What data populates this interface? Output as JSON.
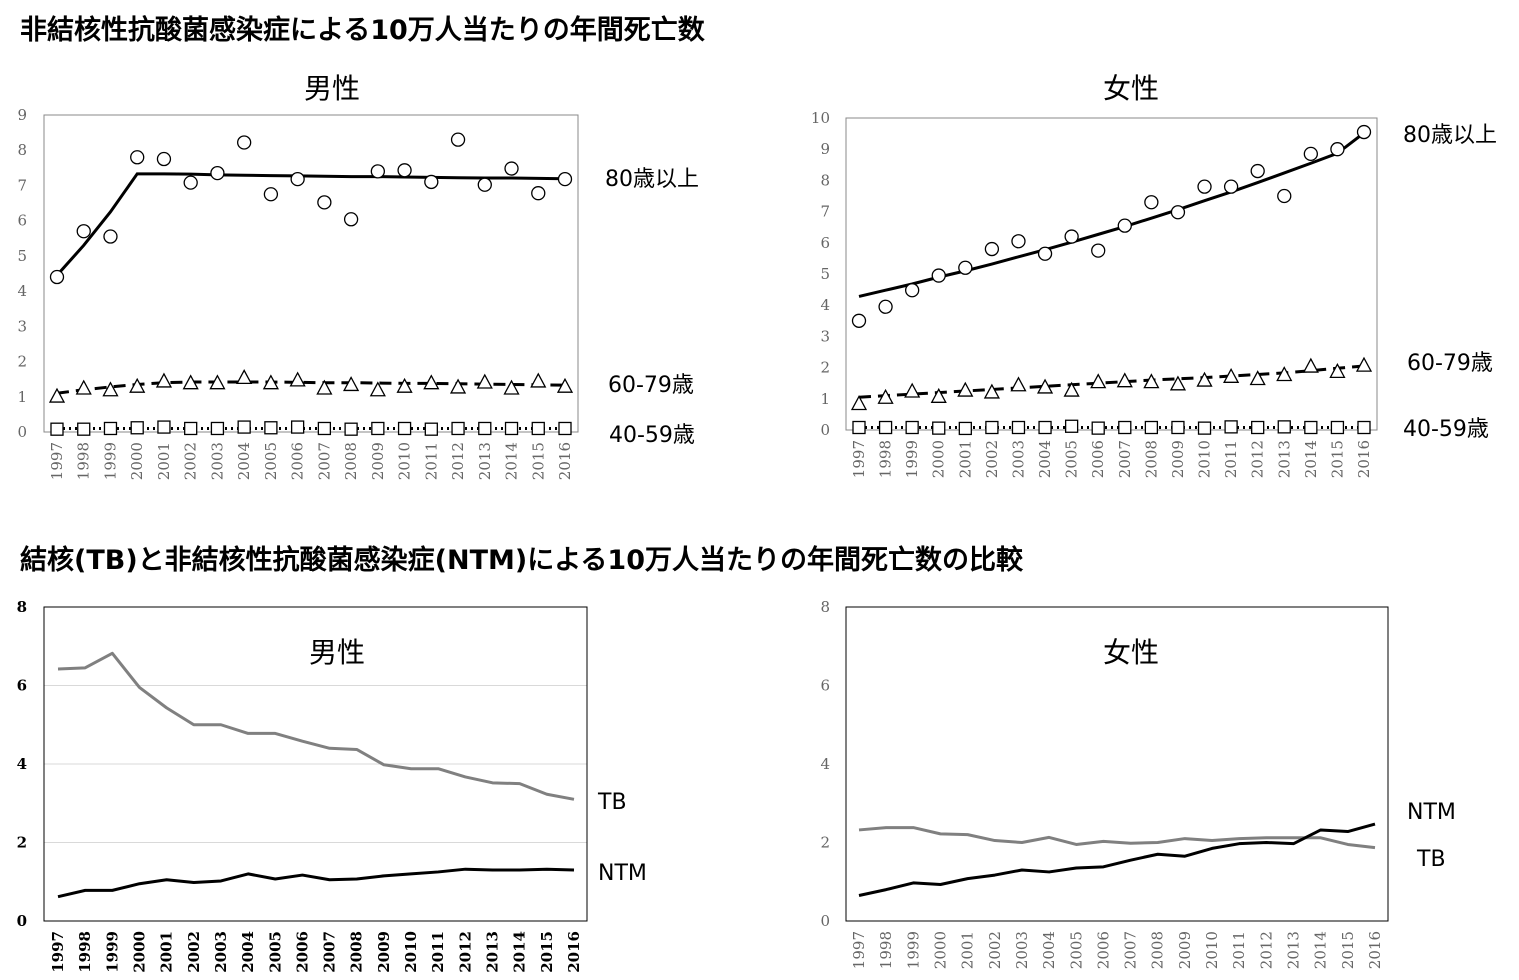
{
  "headings": {
    "top": "非結核性抗酸菌感染症による10万人当たりの年間死亡数",
    "bottom": "結核(TB)と非結核性抗酸菌感染症(NTM)による10万人当たりの年間死亡数の比較"
  },
  "colors": {
    "tb": "#808080",
    "ntm": "#000000",
    "gridline": "#d9d9d9"
  },
  "chart_data": [
    {
      "id": "top-male",
      "type": "scatter",
      "title": "男性",
      "categories": [
        "1997",
        "1998",
        "1999",
        "2000",
        "2001",
        "2002",
        "2003",
        "2004",
        "2005",
        "2006",
        "2007",
        "2008",
        "2009",
        "2010",
        "2011",
        "2012",
        "2013",
        "2014",
        "2015",
        "2016"
      ],
      "ylim": [
        0,
        9
      ],
      "yticks": [
        0,
        1,
        2,
        3,
        4,
        5,
        6,
        7,
        8,
        9
      ],
      "series": [
        {
          "name": "80歳以上",
          "marker": "circle",
          "values": [
            4.4,
            5.7,
            5.55,
            7.8,
            7.75,
            7.08,
            7.35,
            8.22,
            6.75,
            7.18,
            6.52,
            6.04,
            7.4,
            7.43,
            7.1,
            8.3,
            7.02,
            7.48,
            6.78,
            7.18
          ],
          "trend": [
            4.45,
            5.3,
            6.25,
            7.33,
            7.33,
            7.32,
            7.3,
            7.29,
            7.28,
            7.27,
            7.26,
            7.25,
            7.25,
            7.24,
            7.23,
            7.22,
            7.21,
            7.21,
            7.2,
            7.19
          ]
        },
        {
          "name": "60-79歳",
          "marker": "triangle",
          "values": [
            1.02,
            1.25,
            1.2,
            1.3,
            1.45,
            1.4,
            1.4,
            1.55,
            1.4,
            1.48,
            1.25,
            1.35,
            1.2,
            1.3,
            1.4,
            1.28,
            1.42,
            1.25,
            1.45,
            1.3
          ],
          "trend": [
            1.1,
            1.2,
            1.28,
            1.35,
            1.4,
            1.42,
            1.42,
            1.42,
            1.42,
            1.41,
            1.4,
            1.4,
            1.39,
            1.38,
            1.38,
            1.37,
            1.36,
            1.35,
            1.34,
            1.33
          ]
        },
        {
          "name": "40-59歳",
          "marker": "square",
          "values": [
            0.08,
            0.08,
            0.1,
            0.12,
            0.14,
            0.1,
            0.1,
            0.14,
            0.12,
            0.14,
            0.1,
            0.08,
            0.1,
            0.1,
            0.08,
            0.1,
            0.1,
            0.1,
            0.1,
            0.1
          ],
          "trend": [
            0.1,
            0.1,
            0.1,
            0.1,
            0.1,
            0.1,
            0.1,
            0.1,
            0.1,
            0.1,
            0.1,
            0.1,
            0.1,
            0.1,
            0.1,
            0.1,
            0.1,
            0.1,
            0.1,
            0.1
          ]
        }
      ]
    },
    {
      "id": "top-female",
      "type": "scatter",
      "title": "女性",
      "categories": [
        "1997",
        "1998",
        "1999",
        "2000",
        "2001",
        "2002",
        "2003",
        "2004",
        "2005",
        "2006",
        "2007",
        "2008",
        "2009",
        "2010",
        "2011",
        "2012",
        "2013",
        "2014",
        "2015",
        "2016"
      ],
      "ylim": [
        0,
        10
      ],
      "yticks": [
        0,
        1,
        2,
        3,
        4,
        5,
        6,
        7,
        8,
        9,
        10
      ],
      "series": [
        {
          "name": "80歳以上",
          "marker": "circle",
          "values": [
            3.5,
            3.95,
            4.48,
            4.95,
            5.2,
            5.8,
            6.05,
            5.65,
            6.2,
            5.75,
            6.55,
            7.3,
            6.98,
            7.8,
            7.8,
            8.3,
            7.5,
            8.85,
            9.0,
            9.55
          ],
          "trend": [
            4.28,
            4.48,
            4.68,
            4.9,
            5.1,
            5.32,
            5.55,
            5.78,
            6.02,
            6.27,
            6.52,
            6.79,
            7.06,
            7.35,
            7.63,
            7.93,
            8.24,
            8.55,
            8.87,
            9.52
          ]
        },
        {
          "name": "60-79歳",
          "marker": "triangle",
          "values": [
            0.85,
            1.05,
            1.25,
            1.08,
            1.28,
            1.22,
            1.45,
            1.38,
            1.28,
            1.55,
            1.58,
            1.55,
            1.48,
            1.6,
            1.72,
            1.65,
            1.78,
            2.05,
            1.88,
            2.08
          ],
          "trend": [
            1.05,
            1.1,
            1.15,
            1.2,
            1.25,
            1.3,
            1.35,
            1.4,
            1.45,
            1.5,
            1.55,
            1.6,
            1.64,
            1.68,
            1.73,
            1.78,
            1.83,
            1.9,
            1.98,
            2.05
          ]
        },
        {
          "name": "40-59歳",
          "marker": "square",
          "values": [
            0.08,
            0.08,
            0.08,
            0.06,
            0.05,
            0.08,
            0.08,
            0.08,
            0.12,
            0.06,
            0.08,
            0.08,
            0.08,
            0.06,
            0.1,
            0.08,
            0.1,
            0.08,
            0.08,
            0.08
          ],
          "trend": [
            0.08,
            0.08,
            0.08,
            0.08,
            0.08,
            0.08,
            0.08,
            0.08,
            0.08,
            0.08,
            0.08,
            0.08,
            0.08,
            0.08,
            0.08,
            0.08,
            0.08,
            0.08,
            0.08,
            0.08
          ]
        }
      ]
    },
    {
      "id": "bottom-male",
      "type": "line",
      "title": "男性",
      "categories": [
        "1997",
        "1998",
        "1999",
        "2000",
        "2001",
        "2002",
        "2003",
        "2004",
        "2005",
        "2006",
        "2007",
        "2008",
        "2009",
        "2010",
        "2011",
        "2012",
        "2013",
        "2014",
        "2015",
        "2016"
      ],
      "ylim": [
        0,
        8
      ],
      "yticks": [
        0,
        2,
        4,
        6,
        8
      ],
      "series": [
        {
          "name": "TB",
          "values": [
            6.42,
            6.45,
            6.82,
            5.95,
            5.43,
            5.0,
            5.0,
            4.78,
            4.78,
            4.58,
            4.4,
            4.37,
            3.98,
            3.88,
            3.88,
            3.67,
            3.52,
            3.5,
            3.23,
            3.1
          ]
        },
        {
          "name": "NTM",
          "values": [
            0.62,
            0.78,
            0.78,
            0.95,
            1.05,
            0.98,
            1.02,
            1.2,
            1.07,
            1.17,
            1.05,
            1.07,
            1.15,
            1.2,
            1.25,
            1.32,
            1.3,
            1.3,
            1.32,
            1.3
          ]
        }
      ]
    },
    {
      "id": "bottom-female",
      "type": "line",
      "title": "女性",
      "categories": [
        "1997",
        "1998",
        "1999",
        "2000",
        "2001",
        "2002",
        "2003",
        "2004",
        "2005",
        "2006",
        "2007",
        "2008",
        "2009",
        "2010",
        "2011",
        "2012",
        "2013",
        "2014",
        "2015",
        "2016"
      ],
      "ylim": [
        0,
        8
      ],
      "yticks": [
        0,
        2,
        4,
        6,
        8
      ],
      "series": [
        {
          "name": "TB",
          "values": [
            2.32,
            2.38,
            2.38,
            2.22,
            2.2,
            2.05,
            2.0,
            2.13,
            1.95,
            2.03,
            1.98,
            2.0,
            2.1,
            2.05,
            2.1,
            2.12,
            2.12,
            2.12,
            1.95,
            1.87
          ]
        },
        {
          "name": "NTM",
          "values": [
            0.65,
            0.8,
            0.97,
            0.93,
            1.08,
            1.17,
            1.3,
            1.25,
            1.35,
            1.38,
            1.55,
            1.7,
            1.65,
            1.85,
            1.97,
            2.0,
            1.97,
            2.32,
            2.28,
            2.47
          ]
        }
      ]
    }
  ]
}
